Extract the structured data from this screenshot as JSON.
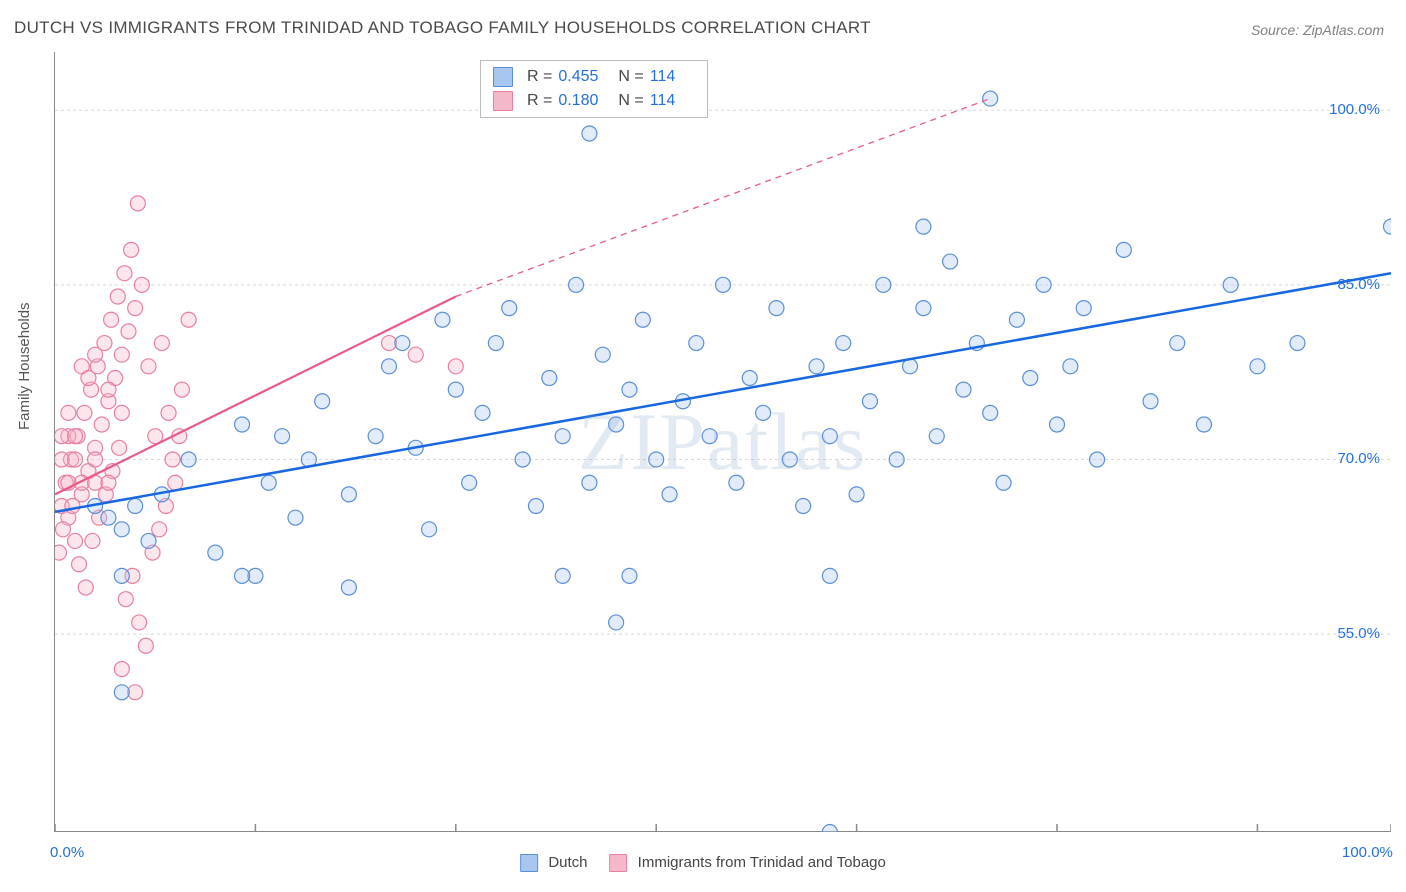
{
  "title": "DUTCH VS IMMIGRANTS FROM TRINIDAD AND TOBAGO FAMILY HOUSEHOLDS CORRELATION CHART",
  "source": "Source: ZipAtlas.com",
  "watermark": "ZIPatlas",
  "y_axis_label": "Family Households",
  "chart": {
    "type": "scatter",
    "xlim": [
      0,
      100
    ],
    "ylim": [
      38,
      105
    ],
    "x_ticks": [
      0,
      15,
      30,
      45,
      60,
      75,
      90,
      100
    ],
    "x_tick_labels": {
      "0": "0.0%",
      "100": "100.0%"
    },
    "y_ticks": [
      55,
      70,
      85,
      100
    ],
    "y_tick_labels": {
      "55": "55.0%",
      "70": "70.0%",
      "85": "85.0%",
      "100": "100.0%"
    },
    "grid_color": "#d9d9d9",
    "background_color": "#ffffff",
    "marker_radius": 7.5,
    "marker_stroke_width": 1.2,
    "marker_fill_opacity": 0.35
  },
  "series": [
    {
      "name": "Dutch",
      "fill_color": "#a8c6f0",
      "stroke_color": "#5a8fd6",
      "line_color": "#1768e0",
      "trend": {
        "x1": 0,
        "y1": 65.5,
        "x2": 100,
        "y2": 86,
        "dash_from_x": 100
      },
      "R": "0.455",
      "N": "114",
      "points": [
        [
          3,
          66
        ],
        [
          4,
          65
        ],
        [
          5,
          64
        ],
        [
          6,
          66
        ],
        [
          7,
          63
        ],
        [
          8,
          67
        ],
        [
          10,
          70
        ],
        [
          12,
          62
        ],
        [
          14,
          73
        ],
        [
          15,
          60
        ],
        [
          16,
          68
        ],
        [
          17,
          72
        ],
        [
          18,
          65
        ],
        [
          19,
          70
        ],
        [
          20,
          75
        ],
        [
          22,
          67
        ],
        [
          24,
          72
        ],
        [
          25,
          78
        ],
        [
          26,
          80
        ],
        [
          27,
          71
        ],
        [
          28,
          64
        ],
        [
          29,
          82
        ],
        [
          30,
          76
        ],
        [
          31,
          68
        ],
        [
          32,
          74
        ],
        [
          33,
          80
        ],
        [
          34,
          83
        ],
        [
          35,
          70
        ],
        [
          36,
          66
        ],
        [
          37,
          77
        ],
        [
          38,
          72
        ],
        [
          39,
          85
        ],
        [
          40,
          68
        ],
        [
          41,
          79
        ],
        [
          42,
          73
        ],
        [
          43,
          76
        ],
        [
          44,
          82
        ],
        [
          45,
          70
        ],
        [
          46,
          67
        ],
        [
          47,
          75
        ],
        [
          48,
          80
        ],
        [
          49,
          72
        ],
        [
          50,
          85
        ],
        [
          51,
          68
        ],
        [
          52,
          77
        ],
        [
          53,
          74
        ],
        [
          54,
          83
        ],
        [
          55,
          70
        ],
        [
          56,
          66
        ],
        [
          22,
          59
        ],
        [
          42,
          56
        ],
        [
          43,
          60
        ],
        [
          58,
          60
        ],
        [
          38,
          60
        ],
        [
          5,
          60
        ],
        [
          14,
          60
        ],
        [
          57,
          78
        ],
        [
          58,
          72
        ],
        [
          59,
          80
        ],
        [
          60,
          67
        ],
        [
          61,
          75
        ],
        [
          62,
          85
        ],
        [
          63,
          70
        ],
        [
          64,
          78
        ],
        [
          65,
          83
        ],
        [
          66,
          72
        ],
        [
          67,
          87
        ],
        [
          68,
          76
        ],
        [
          69,
          80
        ],
        [
          70,
          74
        ],
        [
          71,
          68
        ],
        [
          72,
          82
        ],
        [
          73,
          77
        ],
        [
          74,
          85
        ],
        [
          75,
          73
        ],
        [
          76,
          78
        ],
        [
          77,
          83
        ],
        [
          78,
          70
        ],
        [
          80,
          88
        ],
        [
          82,
          75
        ],
        [
          84,
          80
        ],
        [
          86,
          73
        ],
        [
          88,
          85
        ],
        [
          90,
          78
        ],
        [
          93,
          80
        ],
        [
          100,
          90
        ],
        [
          70,
          101
        ],
        [
          40,
          98
        ],
        [
          65,
          90
        ],
        [
          58,
          38
        ],
        [
          5,
          50
        ]
      ]
    },
    {
      "name": "Immigrants from Trinidad and Tobago",
      "fill_color": "#f5b8c8",
      "stroke_color": "#e87fa0",
      "line_color": "#e85a8a",
      "trend": {
        "x1": 0,
        "y1": 67,
        "x2": 30,
        "y2": 84,
        "dash_to": [
          70,
          101
        ]
      },
      "R": "0.180",
      "N": "114",
      "points": [
        [
          0.5,
          66
        ],
        [
          0.8,
          68
        ],
        [
          1,
          65
        ],
        [
          1.2,
          70
        ],
        [
          1.5,
          63
        ],
        [
          1.7,
          72
        ],
        [
          2,
          67
        ],
        [
          2.2,
          74
        ],
        [
          2.5,
          69
        ],
        [
          2.7,
          76
        ],
        [
          3,
          71
        ],
        [
          3.2,
          78
        ],
        [
          3.5,
          73
        ],
        [
          3.7,
          80
        ],
        [
          4,
          75
        ],
        [
          4.2,
          82
        ],
        [
          4.5,
          77
        ],
        [
          4.7,
          84
        ],
        [
          5,
          79
        ],
        [
          5.2,
          86
        ],
        [
          5.5,
          81
        ],
        [
          5.7,
          88
        ],
        [
          6,
          83
        ],
        [
          6.2,
          92
        ],
        [
          6.5,
          85
        ],
        [
          7,
          78
        ],
        [
          7.5,
          72
        ],
        [
          8,
          80
        ],
        [
          8.5,
          74
        ],
        [
          9,
          68
        ],
        [
          9.5,
          76
        ],
        [
          10,
          82
        ],
        [
          0.3,
          62
        ],
        [
          0.6,
          64
        ],
        [
          1.3,
          66
        ],
        [
          1.8,
          61
        ],
        [
          2.3,
          59
        ],
        [
          2.8,
          63
        ],
        [
          3.3,
          65
        ],
        [
          3.8,
          67
        ],
        [
          4.3,
          69
        ],
        [
          4.8,
          71
        ],
        [
          5.3,
          58
        ],
        [
          5.8,
          60
        ],
        [
          6.3,
          56
        ],
        [
          6.8,
          54
        ],
        [
          7.3,
          62
        ],
        [
          7.8,
          64
        ],
        [
          8.3,
          66
        ],
        [
          8.8,
          70
        ],
        [
          9.3,
          72
        ],
        [
          2,
          78
        ],
        [
          2.5,
          77
        ],
        [
          3,
          79
        ],
        [
          4,
          76
        ],
        [
          5,
          74
        ],
        [
          2,
          68
        ],
        [
          3,
          68
        ],
        [
          3,
          70
        ],
        [
          4,
          68
        ],
        [
          1,
          68
        ],
        [
          1,
          72
        ],
        [
          1,
          74
        ],
        [
          0.5,
          70
        ],
        [
          0.5,
          72
        ],
        [
          1.5,
          70
        ],
        [
          1.5,
          72
        ],
        [
          5,
          52
        ],
        [
          6,
          50
        ],
        [
          25,
          80
        ],
        [
          27,
          79
        ],
        [
          30,
          78
        ]
      ]
    }
  ],
  "bottom_legend": [
    {
      "label": "Dutch",
      "fill": "#a8c6f0",
      "stroke": "#5a8fd6"
    },
    {
      "label": "Immigrants from Trinidad and Tobago",
      "fill": "#f5b8c8",
      "stroke": "#e87fa0"
    }
  ]
}
